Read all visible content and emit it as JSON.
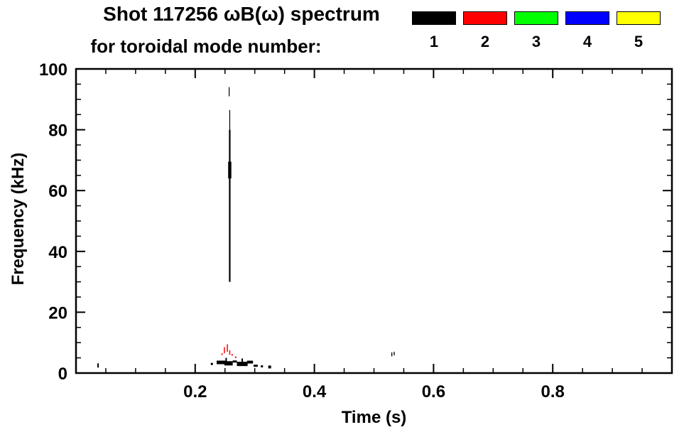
{
  "header": {
    "title_line1": "Shot 117256 ωB(ω) spectrum",
    "title_line2": "for toroidal mode number:"
  },
  "legend": {
    "modes": [
      {
        "label": "1",
        "color": "#000000"
      },
      {
        "label": "2",
        "color": "#ff0000"
      },
      {
        "label": "3",
        "color": "#00ff00"
      },
      {
        "label": "4",
        "color": "#0000ff"
      },
      {
        "label": "5",
        "color": "#ffff00"
      }
    ]
  },
  "chart_data": {
    "type": "scatter",
    "title": "Shot 117256 ωB(ω) spectrum for toroidal mode number:",
    "xlabel": "Time (s)",
    "ylabel": "Frequency (kHz)",
    "xlim": [
      0,
      1.0
    ],
    "ylim": [
      0,
      100
    ],
    "xticks": [
      0.2,
      0.4,
      0.6,
      0.8
    ],
    "xtick_labels": [
      "0.2",
      "0.4",
      "0.6",
      "0.8"
    ],
    "yticks": [
      0,
      20,
      40,
      60,
      80,
      100
    ],
    "ytick_labels": [
      "0",
      "20",
      "40",
      "60",
      "80",
      "100"
    ],
    "xtick_minor_step": 0.05,
    "ytick_minor_step": 5,
    "grid": false,
    "legend_position": "top-right",
    "series": [
      {
        "name": "n1",
        "mode": 1,
        "color": "#000000",
        "vsegments": [
          {
            "t": 0.258,
            "f0": 30,
            "f1": 80,
            "w": 2.2
          },
          {
            "t": 0.258,
            "f0": 80,
            "f1": 86.5,
            "w": 1.2
          },
          {
            "t": 0.257,
            "f0": 91,
            "f1": 94,
            "w": 1.2
          },
          {
            "t": 0.258,
            "f0": 64,
            "f1": 69.5,
            "w": 4.5
          },
          {
            "t": 0.252,
            "f0": 3,
            "f1": 5,
            "w": 2
          },
          {
            "t": 0.279,
            "f0": 3,
            "f1": 4.8,
            "w": 2
          },
          {
            "t": 0.037,
            "f0": 1.8,
            "f1": 3.2,
            "w": 2
          },
          {
            "t": 0.53,
            "f0": 5.5,
            "f1": 6.8,
            "w": 1.3
          },
          {
            "t": 0.534,
            "f0": 5.8,
            "f1": 7.0,
            "w": 1.3
          }
        ],
        "hsegments": [
          {
            "f": 3.5,
            "t0": 0.236,
            "t1": 0.251,
            "w": 5
          },
          {
            "f": 3.2,
            "t0": 0.249,
            "t1": 0.263,
            "w": 6
          },
          {
            "f": 3.8,
            "t0": 0.263,
            "t1": 0.27,
            "w": 3
          },
          {
            "f": 3.0,
            "t0": 0.27,
            "t1": 0.288,
            "w": 6
          },
          {
            "f": 3.6,
            "t0": 0.287,
            "t1": 0.297,
            "w": 4
          },
          {
            "f": 2.4,
            "t0": 0.298,
            "t1": 0.305,
            "w": 3
          }
        ],
        "points": [
          {
            "t": 0.228,
            "f": 3.0,
            "s": 3
          },
          {
            "t": 0.312,
            "f": 2.2,
            "s": 3
          },
          {
            "t": 0.325,
            "f": 2.0,
            "s": 4
          }
        ]
      },
      {
        "name": "n2",
        "mode": 2,
        "color": "#ff0000",
        "vsegments": [
          {
            "t": 0.249,
            "f0": 6.5,
            "f1": 8.5,
            "w": 1.5
          },
          {
            "t": 0.254,
            "f0": 7.0,
            "f1": 9.5,
            "w": 1.5
          },
          {
            "t": 0.258,
            "f0": 6.0,
            "f1": 7.5,
            "w": 1.5
          }
        ],
        "hsegments": [],
        "points": [
          {
            "t": 0.245,
            "f": 6.2,
            "s": 2
          },
          {
            "t": 0.262,
            "f": 6.0,
            "s": 2
          },
          {
            "t": 0.268,
            "f": 5.2,
            "s": 2
          }
        ]
      },
      {
        "name": "n3",
        "mode": 3,
        "color": "#00ff00",
        "vsegments": [],
        "hsegments": [],
        "points": []
      },
      {
        "name": "n4",
        "mode": 4,
        "color": "#0000ff",
        "vsegments": [],
        "hsegments": [],
        "points": []
      },
      {
        "name": "n5",
        "mode": 5,
        "color": "#ffff00",
        "vsegments": [],
        "hsegments": [],
        "points": []
      }
    ]
  }
}
